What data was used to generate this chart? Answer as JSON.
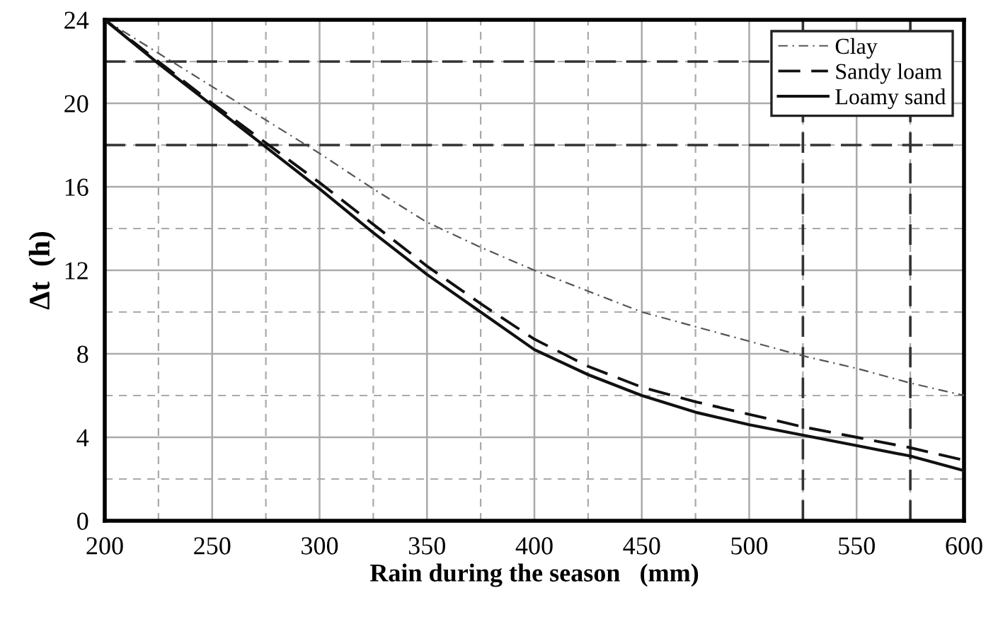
{
  "chart_data": {
    "type": "line",
    "xlabel": "Rain during the season   (mm)",
    "ylabel": "Δt  (h)",
    "x": [
      200,
      225,
      250,
      275,
      300,
      325,
      350,
      375,
      400,
      425,
      450,
      475,
      500,
      525,
      550,
      575,
      600
    ],
    "series": [
      {
        "name": "Clay",
        "color": "#555555",
        "line_style": "dashdot",
        "values": [
          24,
          22.4,
          20.8,
          19.2,
          17.6,
          15.9,
          14.3,
          13.1,
          12.0,
          11.0,
          10.0,
          9.3,
          8.6,
          7.9,
          7.3,
          6.6,
          6.0
        ]
      },
      {
        "name": "Sandy loam",
        "color": "#111111",
        "line_style": "dashed",
        "values": [
          24,
          22,
          20,
          18.1,
          16.2,
          14.2,
          12.2,
          10.4,
          8.7,
          7.4,
          6.4,
          5.7,
          5.1,
          4.5,
          4.0,
          3.5,
          2.9
        ]
      },
      {
        "name": "Loamy sand",
        "color": "#111111",
        "line_style": "solid",
        "values": [
          24,
          21.9,
          19.9,
          17.9,
          15.9,
          13.8,
          11.8,
          10.0,
          8.2,
          7.0,
          6.0,
          5.2,
          4.6,
          4.1,
          3.6,
          3.1,
          2.4
        ]
      }
    ],
    "xlim": [
      200,
      600
    ],
    "ylim": [
      0,
      24
    ],
    "xticks": [
      200,
      250,
      300,
      350,
      400,
      450,
      500,
      550,
      600
    ],
    "yticks": [
      0,
      4,
      8,
      12,
      16,
      20,
      24
    ],
    "ref_lines": [
      {
        "axis": "y",
        "value": 22,
        "color": "#333333",
        "line_style": "dashed"
      },
      {
        "axis": "y",
        "value": 18,
        "color": "#333333",
        "line_style": "dashed"
      },
      {
        "axis": "x",
        "value": 525,
        "color": "#333333",
        "line_style": "dashed"
      },
      {
        "axis": "x",
        "value": 575,
        "color": "#333333",
        "line_style": "dashed"
      }
    ],
    "grid": true,
    "legend": "top right"
  }
}
